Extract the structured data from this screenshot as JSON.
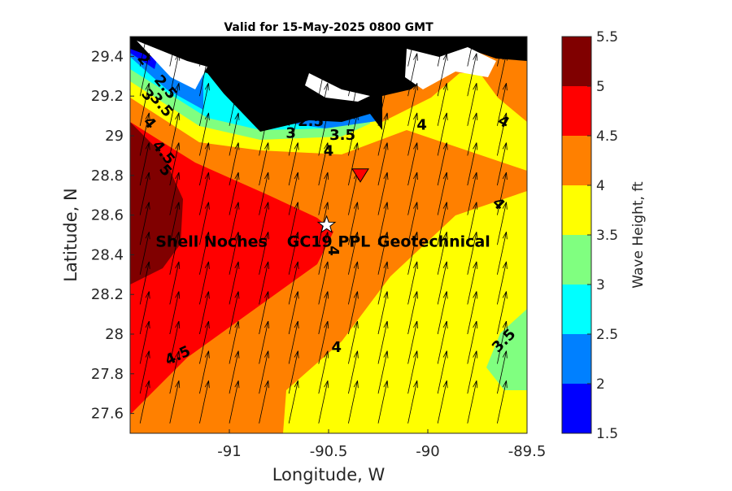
{
  "chart_data": {
    "type": "heatmap",
    "title": "Valid for 15-May-2025 0800 GMT",
    "xlabel": "Longitude, W",
    "ylabel": "Latitude, N",
    "xlim": [
      -91.5,
      -89.5
    ],
    "ylim": [
      27.5,
      29.5
    ],
    "x_ticks": [
      {
        "value": -91,
        "label": "-91"
      },
      {
        "value": -90.5,
        "label": "-90.5"
      },
      {
        "value": -90,
        "label": "-90"
      },
      {
        "value": -89.5,
        "label": "-89.5"
      }
    ],
    "y_ticks": [
      {
        "value": 27.6,
        "label": "27.6"
      },
      {
        "value": 27.8,
        "label": "27.8"
      },
      {
        "value": 28,
        "label": "28"
      },
      {
        "value": 28.2,
        "label": "28.2"
      },
      {
        "value": 28.4,
        "label": "28.4"
      },
      {
        "value": 28.6,
        "label": "28.6"
      },
      {
        "value": 28.8,
        "label": "28.8"
      },
      {
        "value": 29,
        "label": "29"
      },
      {
        "value": 29.2,
        "label": "29.2"
      },
      {
        "value": 29.4,
        "label": "29.4"
      }
    ],
    "colorbar": {
      "label": "Wave Height, ft",
      "levels": [
        {
          "from": 1.5,
          "to": 2,
          "color": "#0000ff"
        },
        {
          "from": 2,
          "to": 2.5,
          "color": "#0080ff"
        },
        {
          "from": 2.5,
          "to": 3,
          "color": "#00ffff"
        },
        {
          "from": 3,
          "to": 3.5,
          "color": "#80ff80"
        },
        {
          "from": 3.5,
          "to": 4,
          "color": "#ffff00"
        },
        {
          "from": 4,
          "to": 4.5,
          "color": "#ff8000"
        },
        {
          "from": 4.5,
          "to": 5,
          "color": "#ff0000"
        },
        {
          "from": 5,
          "to": 5.5,
          "color": "#800000"
        }
      ],
      "tick_labels": [
        "1.5",
        "2",
        "2.5",
        "3",
        "3.5",
        "4",
        "4.5",
        "5",
        "5.5"
      ]
    },
    "land_color": "#000000",
    "contour_labels": [
      {
        "text": "2",
        "lon": -91.45,
        "lat": 29.37,
        "rotation": 50
      },
      {
        "text": "2.5",
        "lon": -91.34,
        "lat": 29.23,
        "rotation": 50
      },
      {
        "text": "3",
        "lon": -91.43,
        "lat": 29.19,
        "rotation": 50
      },
      {
        "text": "3.5",
        "lon": -91.36,
        "lat": 29.14,
        "rotation": 50
      },
      {
        "text": "4",
        "lon": -91.42,
        "lat": 29.05,
        "rotation": 50
      },
      {
        "text": "4.5",
        "lon": -91.35,
        "lat": 28.9,
        "rotation": 50
      },
      {
        "text": "5",
        "lon": -91.34,
        "lat": 28.81,
        "rotation": 50
      },
      {
        "text": "2",
        "lon": -90.59,
        "lat": 29.12,
        "rotation": 0
      },
      {
        "text": "2.5",
        "lon": -90.59,
        "lat": 29.05,
        "rotation": 0
      },
      {
        "text": "3",
        "lon": -90.69,
        "lat": 28.99,
        "rotation": 0
      },
      {
        "text": "3.5",
        "lon": -90.43,
        "lat": 28.98,
        "rotation": 0
      },
      {
        "text": "4",
        "lon": -90.5,
        "lat": 28.9,
        "rotation": 0
      },
      {
        "text": "4",
        "lon": -90.03,
        "lat": 29.03,
        "rotation": 0
      },
      {
        "text": "4",
        "lon": -89.63,
        "lat": 29.05,
        "rotation": 30
      },
      {
        "text": "4",
        "lon": -89.66,
        "lat": 28.64,
        "rotation": 45
      },
      {
        "text": "4.5",
        "lon": -91.25,
        "lat": 27.87,
        "rotation": -25
      },
      {
        "text": "4",
        "lon": -90.46,
        "lat": 27.91,
        "rotation": 0
      },
      {
        "text": "3.5",
        "lon": -89.6,
        "lat": 27.95,
        "rotation": -45
      },
      {
        "text": "4",
        "lon": -90.5,
        "lat": 28.42,
        "rotation": 90
      }
    ],
    "sites": [
      {
        "label": "Shell Noches",
        "lon": -91.09,
        "lat": 28.47
      },
      {
        "label": "GC19 PPL",
        "lon": -90.5,
        "lat": 28.47
      },
      {
        "label": "Geotechnical",
        "lon": -89.97,
        "lat": 28.47
      }
    ],
    "markers": [
      {
        "shape": "star",
        "lon": -90.51,
        "lat": 28.55,
        "color": "#ffffff"
      },
      {
        "shape": "triangle",
        "lon": -90.34,
        "lat": 28.8,
        "color": "#ff0000"
      }
    ],
    "wind_vectors": {
      "lon": [
        -91.45,
        -91.3,
        -91.15,
        -91.0,
        -90.85,
        -90.7,
        -90.55,
        -90.4,
        -90.25,
        -90.1,
        -89.95,
        -89.8,
        -89.65
      ],
      "lat": [
        27.55,
        27.7,
        27.85,
        28.0,
        28.15,
        28.3,
        28.45,
        28.6,
        28.75,
        28.9,
        29.05,
        29.2,
        29.35
      ],
      "direction_deg_from_north": 12,
      "length": 0.22
    }
  }
}
